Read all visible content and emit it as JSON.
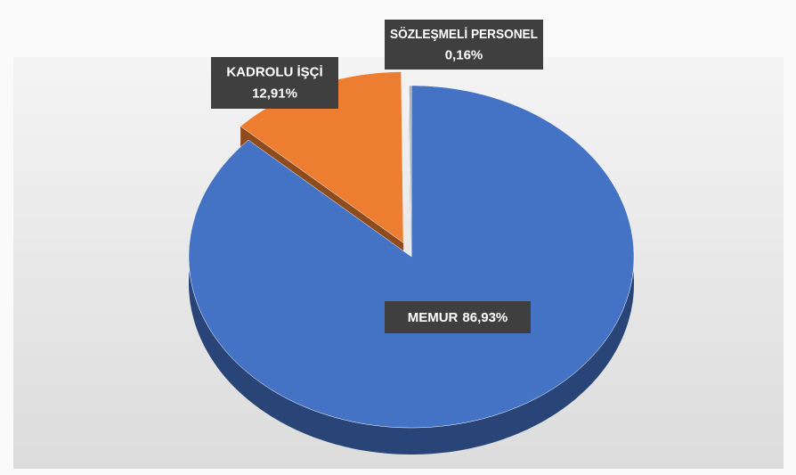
{
  "chart_data": {
    "type": "pie3d",
    "categories": [
      "MEMUR",
      "KADROLU İŞÇİ",
      "SÖZLEŞMELİ PERSONEL"
    ],
    "values": [
      86.93,
      12.91,
      0.16
    ],
    "value_labels": [
      "86,93%",
      "12,91%",
      "0,16%"
    ],
    "colors": [
      "#4472c4",
      "#ed7d31",
      "#a5a5a5"
    ]
  }
}
